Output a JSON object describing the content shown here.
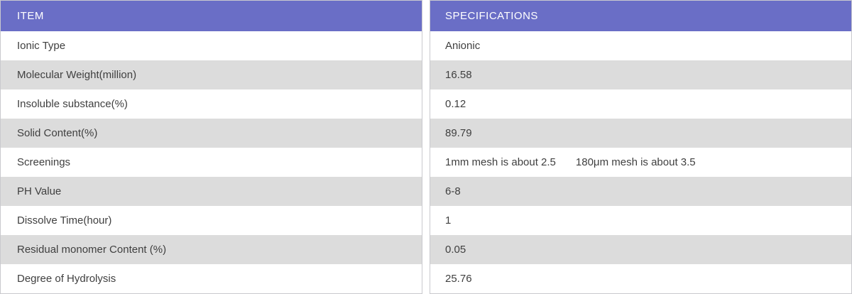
{
  "table": {
    "item_header": "ITEM",
    "spec_header": "SPECIFICATIONS",
    "rows": [
      {
        "item": "Ionic Type",
        "spec": "Anionic"
      },
      {
        "item": "Molecular Weight(million)",
        "spec": "16.58"
      },
      {
        "item": "Insoluble substance(%)",
        "spec": "0.12"
      },
      {
        "item": "Solid Content(%)",
        "spec": "89.79"
      },
      {
        "item": "Screenings",
        "spec": "1mm mesh is about 2.5",
        "spec2": "180μm mesh is about 3.5"
      },
      {
        "item": "PH Value",
        "spec": "6-8"
      },
      {
        "item": "Dissolve Time(hour)",
        "spec": "1"
      },
      {
        "item": "Residual monomer Content (%)",
        "spec": "0.05"
      },
      {
        "item": "Degree of Hydrolysis",
        "spec": "25.76"
      }
    ],
    "colors": {
      "header_bg": "#6a6ec6",
      "header_text": "#ffffff",
      "stripe_bg": "#dcdcdc",
      "row_bg": "#ffffff",
      "border": "#c9c9ce",
      "text": "#3f3f3f"
    }
  }
}
